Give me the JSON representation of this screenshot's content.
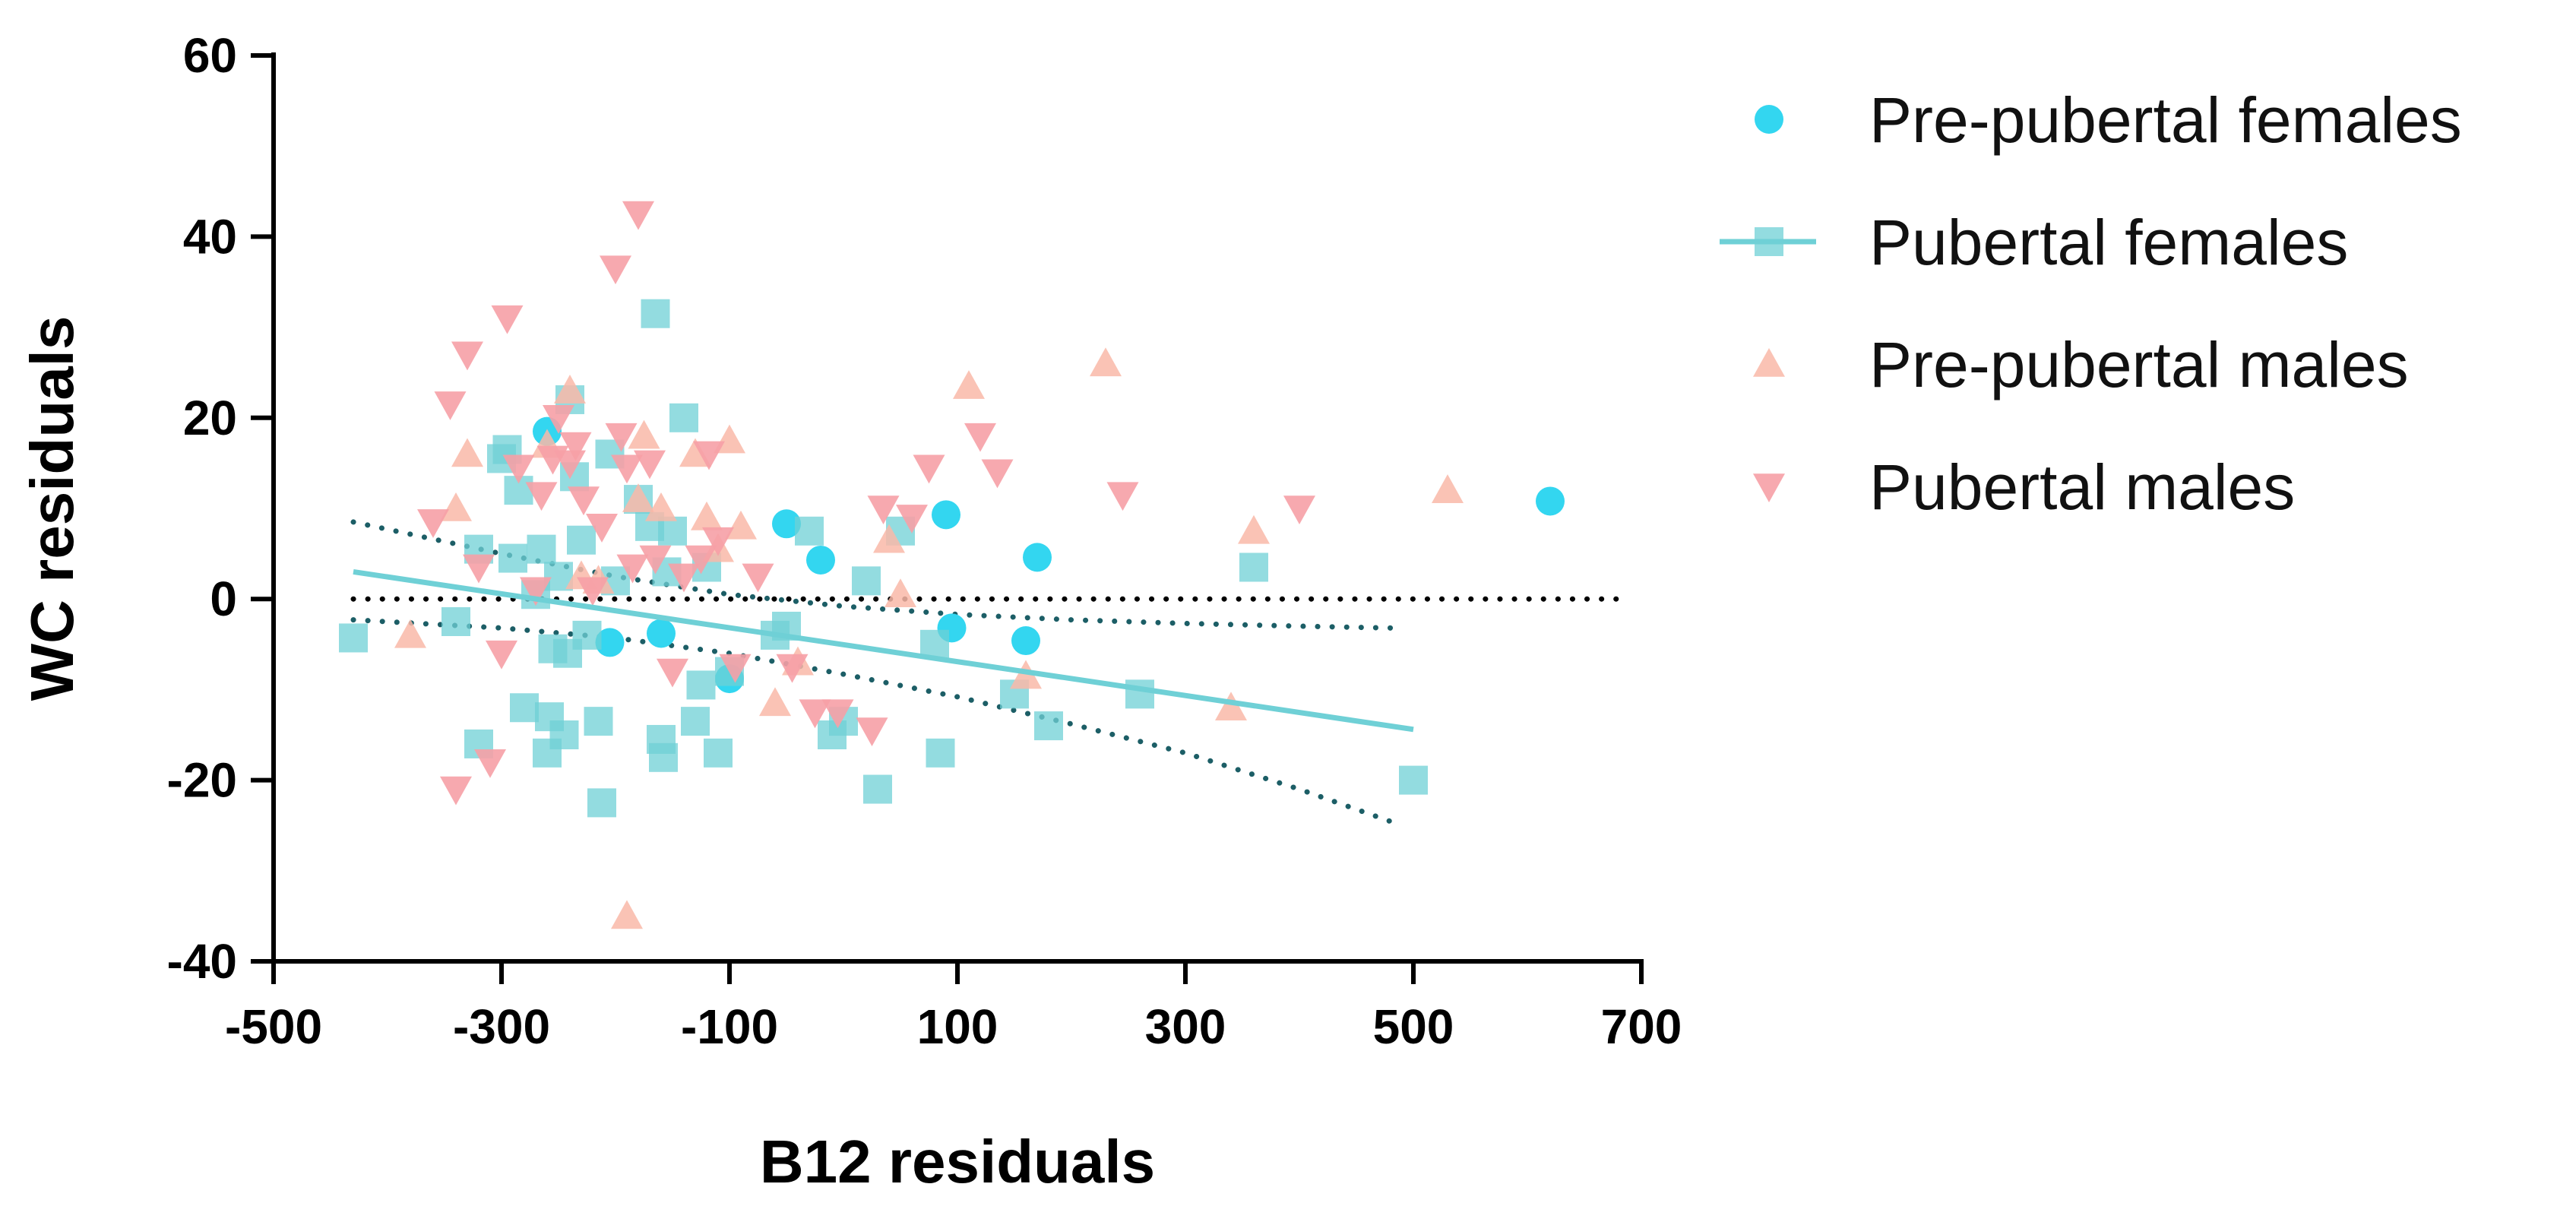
{
  "chart_data": {
    "type": "scatter",
    "title": "",
    "xlabel": "B12 residuals",
    "ylabel": "WC residuals",
    "xlim": [
      -500,
      700
    ],
    "ylim": [
      -40,
      60
    ],
    "xticks": [
      -500,
      -300,
      -100,
      100,
      300,
      500,
      700
    ],
    "yticks": [
      -40,
      -20,
      0,
      20,
      40,
      60
    ],
    "grid": false,
    "legend_position": "right",
    "colors": {
      "pre_pubertal_females": "#33D6F0",
      "pubertal_females": "#6FD0D6",
      "pre_pubertal_males": "#F9B9A8",
      "pubertal_males": "#F6A0A6",
      "ci_band": "#1C5E66",
      "zero_line": "#000000",
      "axis": "#000000"
    },
    "legend": [
      {
        "key": "pre_pubertal_females",
        "label": "Pre-pubertal females",
        "marker": "circle"
      },
      {
        "key": "pubertal_females",
        "label": "Pubertal females",
        "marker": "square"
      },
      {
        "key": "pre_pubertal_males",
        "label": "Pre-pubertal males",
        "marker": "triangle-up"
      },
      {
        "key": "pubertal_males",
        "label": "Pubertal males",
        "marker": "triangle-down"
      }
    ],
    "series": [
      {
        "name": "Pre-pubertal females",
        "key": "pre_pubertal_females",
        "marker": "circle",
        "points": [
          [
            -260,
            18.5
          ],
          [
            -205,
            -4.8
          ],
          [
            -160,
            -3.8
          ],
          [
            -100,
            -8.8
          ],
          [
            -50,
            8.3
          ],
          [
            -20,
            4.3
          ],
          [
            90,
            9.3
          ],
          [
            95,
            -3.2
          ],
          [
            160,
            -4.6
          ],
          [
            170,
            4.6
          ],
          [
            620,
            10.8
          ]
        ]
      },
      {
        "name": "Pubertal females",
        "key": "pubertal_females",
        "marker": "square",
        "points": [
          [
            -430,
            -4.3
          ],
          [
            -340,
            -2.5
          ],
          [
            -320,
            5.5
          ],
          [
            -320,
            -16.0
          ],
          [
            -300,
            15.5
          ],
          [
            -295,
            16.5
          ],
          [
            -290,
            4.5
          ],
          [
            -285,
            12.0
          ],
          [
            -280,
            -12.0
          ],
          [
            -270,
            0.5
          ],
          [
            -265,
            5.5
          ],
          [
            -260,
            -17.0
          ],
          [
            -258,
            -13.0
          ],
          [
            -255,
            -5.5
          ],
          [
            -250,
            2.5
          ],
          [
            -245,
            -15.0
          ],
          [
            -242,
            -6.0
          ],
          [
            -240,
            22.0
          ],
          [
            -236,
            13.5
          ],
          [
            -230,
            6.5
          ],
          [
            -225,
            -4.0
          ],
          [
            -215,
            -13.5
          ],
          [
            -212,
            -22.5
          ],
          [
            -205,
            16.0
          ],
          [
            -200,
            2.0
          ],
          [
            -180,
            11.0
          ],
          [
            -170,
            8.0
          ],
          [
            -165,
            31.5
          ],
          [
            -160,
            -15.5
          ],
          [
            -158,
            -17.5
          ],
          [
            -155,
            3.0
          ],
          [
            -150,
            7.5
          ],
          [
            -140,
            20.0
          ],
          [
            -130,
            -13.5
          ],
          [
            -125,
            -9.5
          ],
          [
            -120,
            3.5
          ],
          [
            -110,
            -17.0
          ],
          [
            -100,
            -8.0
          ],
          [
            -60,
            -4.0
          ],
          [
            -50,
            -3.0
          ],
          [
            -30,
            7.5
          ],
          [
            -10,
            -15.0
          ],
          [
            0,
            -13.5
          ],
          [
            20,
            2.0
          ],
          [
            30,
            -21.0
          ],
          [
            50,
            7.5
          ],
          [
            80,
            -5.0
          ],
          [
            85,
            -17.0
          ],
          [
            150,
            -10.5
          ],
          [
            180,
            -14.0
          ],
          [
            260,
            -10.5
          ],
          [
            360,
            3.5
          ],
          [
            500,
            -20.0
          ]
        ]
      },
      {
        "name": "Pre-pubertal males",
        "key": "pre_pubertal_males",
        "marker": "triangle-up",
        "points": [
          [
            -380,
            -4.0
          ],
          [
            -340,
            10.0
          ],
          [
            -330,
            16.0
          ],
          [
            -260,
            17.0
          ],
          [
            -240,
            23.0
          ],
          [
            -230,
            2.5
          ],
          [
            -215,
            2.0
          ],
          [
            -190,
            -35.0
          ],
          [
            -180,
            11.0
          ],
          [
            -175,
            18.0
          ],
          [
            -160,
            10.0
          ],
          [
            -130,
            16.0
          ],
          [
            -120,
            9.0
          ],
          [
            -110,
            5.5
          ],
          [
            -100,
            17.5
          ],
          [
            -90,
            8.0
          ],
          [
            -60,
            -11.5
          ],
          [
            -40,
            -7.0
          ],
          [
            40,
            6.5
          ],
          [
            50,
            0.5
          ],
          [
            110,
            23.5
          ],
          [
            160,
            -8.5
          ],
          [
            230,
            26.0
          ],
          [
            340,
            -12.0
          ],
          [
            360,
            7.5
          ],
          [
            530,
            12.0
          ]
        ]
      },
      {
        "name": "Pubertal males",
        "key": "pubertal_males",
        "marker": "triangle-down",
        "points": [
          [
            -360,
            8.5
          ],
          [
            -345,
            21.5
          ],
          [
            -330,
            27.0
          ],
          [
            -320,
            3.5
          ],
          [
            -310,
            -18.0
          ],
          [
            -300,
            -6.0
          ],
          [
            -295,
            31.0
          ],
          [
            -285,
            14.5
          ],
          [
            -270,
            1.0
          ],
          [
            -265,
            11.5
          ],
          [
            -255,
            15.5
          ],
          [
            -250,
            20.0
          ],
          [
            -240,
            15.0
          ],
          [
            -235,
            17.0
          ],
          [
            -228,
            11.0
          ],
          [
            -220,
            1.0
          ],
          [
            -212,
            8.0
          ],
          [
            -200,
            36.5
          ],
          [
            -195,
            18.0
          ],
          [
            -190,
            14.5
          ],
          [
            -185,
            3.5
          ],
          [
            -180,
            42.5
          ],
          [
            -170,
            15.0
          ],
          [
            -165,
            4.5
          ],
          [
            -150,
            -8.0
          ],
          [
            -140,
            2.5
          ],
          [
            -125,
            4.5
          ],
          [
            -118,
            16.0
          ],
          [
            -110,
            6.5
          ],
          [
            -95,
            -7.5
          ],
          [
            -75,
            2.5
          ],
          [
            -45,
            -7.5
          ],
          [
            -25,
            -12.5
          ],
          [
            -5,
            -12.5
          ],
          [
            25,
            -14.5
          ],
          [
            35,
            10.0
          ],
          [
            60,
            9.0
          ],
          [
            75,
            14.5
          ],
          [
            120,
            18.0
          ],
          [
            135,
            14.0
          ],
          [
            245,
            11.5
          ],
          [
            400,
            10.0
          ],
          [
            -340,
            -21.0
          ]
        ]
      }
    ],
    "fit_line": {
      "series": "Pubertal females",
      "x": [
        -430,
        500
      ],
      "y": [
        3.0,
        -14.4
      ]
    },
    "ci_upper": {
      "x": [
        -430,
        -300,
        -200,
        -100,
        0,
        100,
        200,
        300,
        400,
        480
      ],
      "y": [
        8.5,
        5.0,
        2.5,
        0.5,
        -0.8,
        -1.7,
        -2.3,
        -2.7,
        -3.0,
        -3.2
      ]
    },
    "ci_lower": {
      "x": [
        -430,
        -300,
        -200,
        -100,
        0,
        100,
        200,
        300,
        400,
        490
      ],
      "y": [
        -2.3,
        -3.2,
        -4.3,
        -6.0,
        -8.3,
        -10.8,
        -13.8,
        -17.0,
        -21.0,
        -25.0
      ]
    },
    "zero_reference": {
      "x": [
        -430,
        680
      ],
      "y": [
        0,
        0
      ]
    }
  }
}
